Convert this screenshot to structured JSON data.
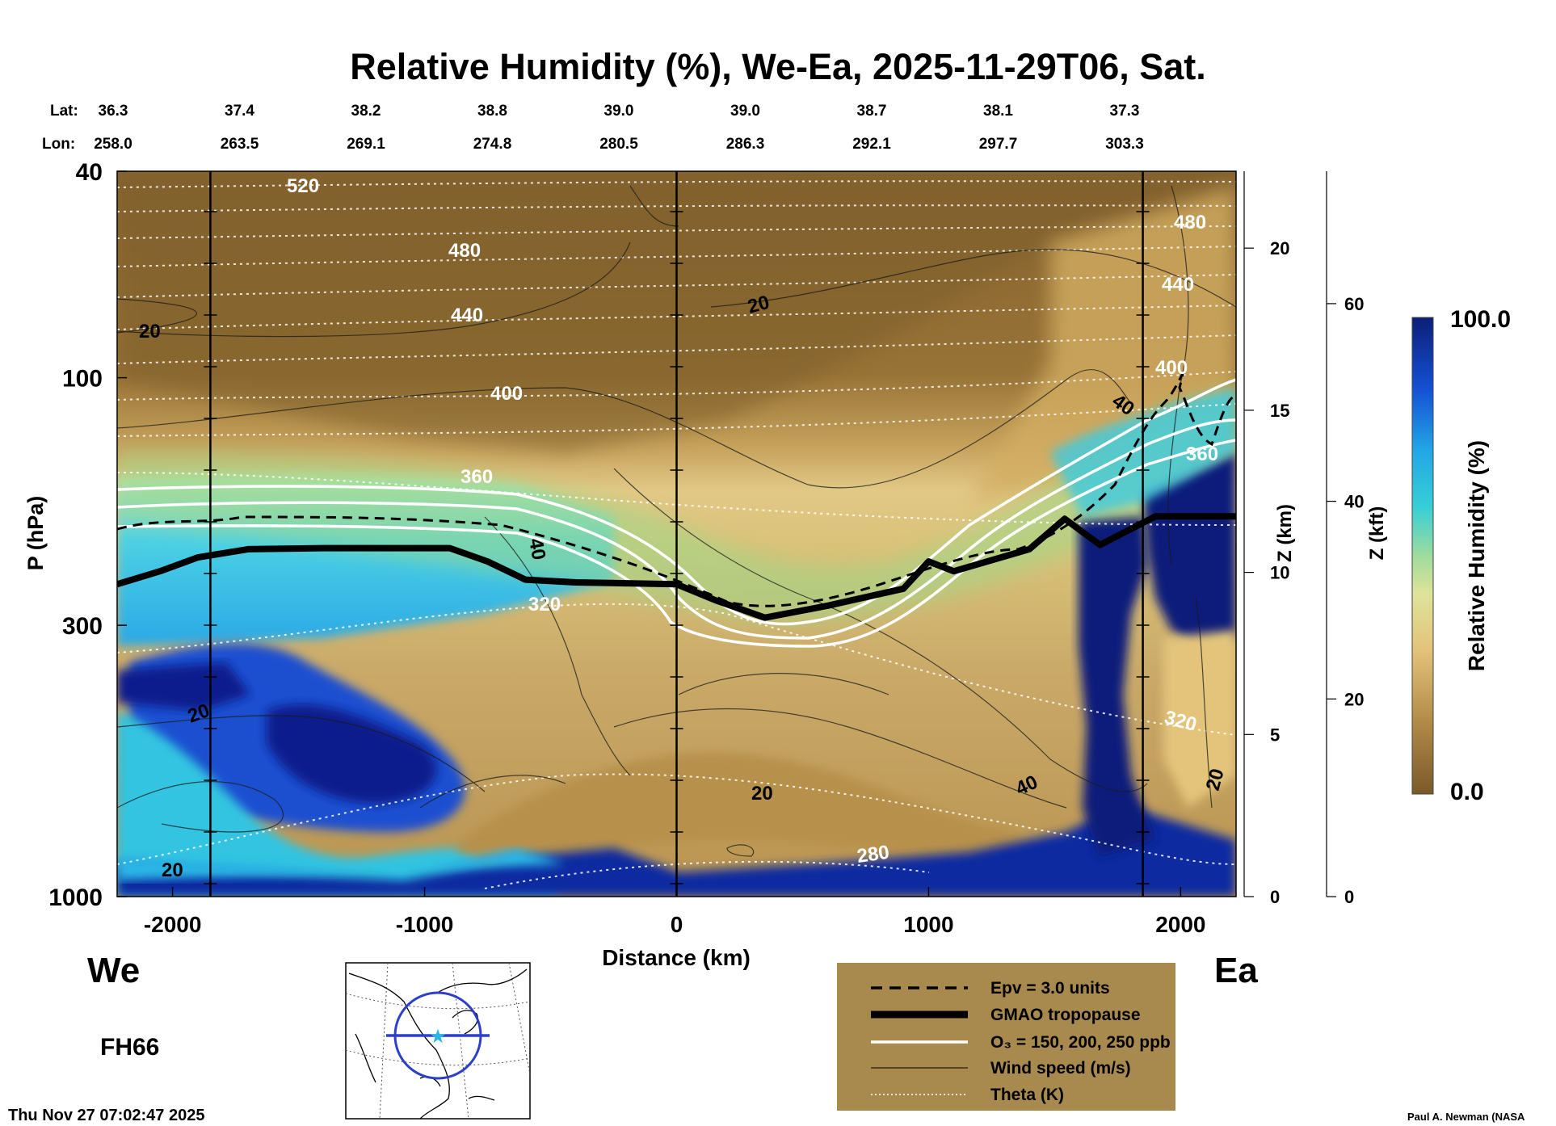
{
  "chart_data": {
    "type": "heatmap",
    "title": "Relative Humidity (%), We-Ea, 2025-11-29T06, Sat.",
    "xlabel": "Distance (km)",
    "ylabel": "P (hPa)",
    "y2label": "Z (km)",
    "y3label": "Z (kft)",
    "colorbar_label": "Relative Humidity (%)",
    "colorbar_max_label": "100.0",
    "colorbar_min_label": "0.0",
    "xlim": [
      -2220,
      2220
    ],
    "ylim": [
      1000,
      40
    ],
    "x_ticks": [
      {
        "value": -2000,
        "label": "-2000"
      },
      {
        "value": -1000,
        "label": "-1000"
      },
      {
        "value": 0,
        "label": "0"
      },
      {
        "value": 1000,
        "label": "1000"
      },
      {
        "value": 2000,
        "label": "2000"
      }
    ],
    "y_ticks": [
      {
        "value": 40,
        "label": "40"
      },
      {
        "value": 100,
        "label": "100"
      },
      {
        "value": 300,
        "label": "300"
      },
      {
        "value": 1000,
        "label": "1000"
      }
    ],
    "zkm_ticks": [
      {
        "value": 0,
        "label": "0"
      },
      {
        "value": 5,
        "label": "5"
      },
      {
        "value": 10,
        "label": "10"
      },
      {
        "value": 15,
        "label": "15"
      },
      {
        "value": 20,
        "label": "20"
      }
    ],
    "zkft_ticks": [
      {
        "value": 0,
        "label": "0"
      },
      {
        "value": 20,
        "label": "20"
      },
      {
        "value": 40,
        "label": "40"
      },
      {
        "value": 60,
        "label": "60"
      }
    ],
    "lat_label": "Lat:",
    "lon_label": "Lon:",
    "latlon": [
      {
        "lat": "36.3",
        "lon": "258.0"
      },
      {
        "lat": "37.4",
        "lon": "263.5"
      },
      {
        "lat": "38.2",
        "lon": "269.1"
      },
      {
        "lat": "38.8",
        "lon": "274.8"
      },
      {
        "lat": "39.0",
        "lon": "280.5"
      },
      {
        "lat": "39.0",
        "lon": "286.3"
      },
      {
        "lat": "38.7",
        "lon": "292.1"
      },
      {
        "lat": "38.1",
        "lon": "297.7"
      },
      {
        "lat": "37.3",
        "lon": "303.3"
      }
    ],
    "vertical_markers_km": [
      -1850,
      0,
      1850
    ],
    "tropopause_hpa": [
      {
        "x": -2220,
        "p": 250
      },
      {
        "x": -2050,
        "p": 236
      },
      {
        "x": -1900,
        "p": 222
      },
      {
        "x": -1700,
        "p": 214
      },
      {
        "x": -1400,
        "p": 213
      },
      {
        "x": -900,
        "p": 213
      },
      {
        "x": -750,
        "p": 226
      },
      {
        "x": -600,
        "p": 245
      },
      {
        "x": -400,
        "p": 248
      },
      {
        "x": 0,
        "p": 250
      },
      {
        "x": 150,
        "p": 268
      },
      {
        "x": 350,
        "p": 290
      },
      {
        "x": 600,
        "p": 275
      },
      {
        "x": 900,
        "p": 255
      },
      {
        "x": 1000,
        "p": 226
      },
      {
        "x": 1100,
        "p": 236
      },
      {
        "x": 1400,
        "p": 214
      },
      {
        "x": 1540,
        "p": 187
      },
      {
        "x": 1680,
        "p": 210
      },
      {
        "x": 1900,
        "p": 185
      },
      {
        "x": 2220,
        "p": 185
      }
    ],
    "theta_levels_K": [
      "520",
      "480",
      "440",
      "400",
      "360",
      "320",
      "280"
    ],
    "wind_speed_labels": [
      "20",
      "40"
    ],
    "panel_left_label": "We",
    "panel_right_label": "Ea",
    "forecast_hour": "FH66",
    "timestamp": "Thu Nov 27 07:02:47 2025",
    "credit": "Paul A. Newman (NASA",
    "legend": [
      {
        "style": "dashed",
        "label": "Epv = 3.0 units"
      },
      {
        "style": "thick",
        "label": "GMAO tropopause"
      },
      {
        "style": "white",
        "label": "O₃ = 150, 200, 250 ppb"
      },
      {
        "style": "thin",
        "label": "Wind speed (m/s)"
      },
      {
        "style": "dotted",
        "label": "Theta (K)"
      }
    ],
    "colors": {
      "dry": "#8a6a34",
      "moist_mid": "#e6c77a",
      "wet_cyan": "#2fc8e0",
      "saturated": "#0a1f9c",
      "legend_bg": "#a98a4e"
    }
  }
}
